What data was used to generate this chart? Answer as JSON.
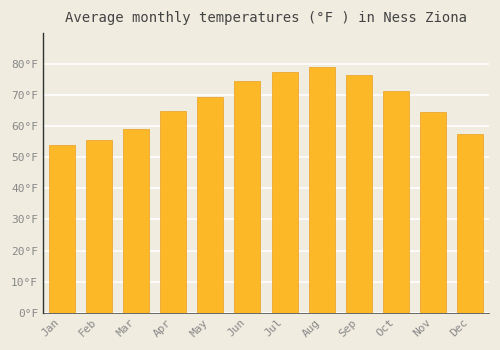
{
  "title": "Average monthly temperatures (°F ) in Ness Ziona",
  "months": [
    "Jan",
    "Feb",
    "Mar",
    "Apr",
    "May",
    "Jun",
    "Jul",
    "Aug",
    "Sep",
    "Oct",
    "Nov",
    "Dec"
  ],
  "values": [
    54,
    55.5,
    59,
    65,
    69.5,
    74.5,
    77.5,
    79,
    76.5,
    71.5,
    64.5,
    57.5
  ],
  "bar_color_face": "#FDB827",
  "bar_color_edge": "#E8A020",
  "bar_width": 0.7,
  "ylim": [
    0,
    90
  ],
  "yticks": [
    0,
    10,
    20,
    30,
    40,
    50,
    60,
    70,
    80
  ],
  "ytick_labels": [
    "0°F",
    "10°F",
    "20°F",
    "30°F",
    "40°F",
    "50°F",
    "60°F",
    "70°F",
    "80°F"
  ],
  "background_color": "#f0ece0",
  "grid_color": "#ffffff",
  "title_fontsize": 10,
  "tick_fontsize": 8,
  "tick_color": "#888888"
}
